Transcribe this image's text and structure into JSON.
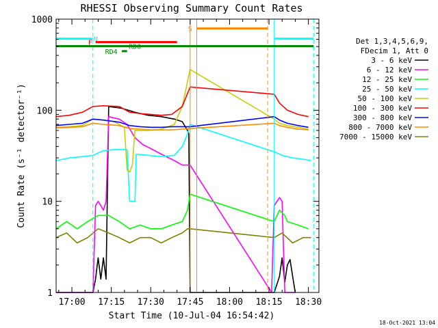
{
  "chart_data": {
    "type": "line",
    "title": "RHESSI Observing Summary Count Rates",
    "xlabel": "Start Time (10-Jul-04 16:54:42)",
    "ylabel": "Count Rate (s⁻¹ detector⁻¹)",
    "yscale": "log",
    "ylim": [
      1,
      1000
    ],
    "xlim_minutes_after_1654": [
      0,
      100
    ],
    "x_ticks": [
      {
        "label": "17:00",
        "min": 6
      },
      {
        "label": "17:15",
        "min": 21
      },
      {
        "label": "17:30",
        "min": 36
      },
      {
        "label": "17:45",
        "min": 51
      },
      {
        "label": "18:00",
        "min": 66
      },
      {
        "label": "18:15",
        "min": 81
      },
      {
        "label": "18:30",
        "min": 96
      }
    ],
    "y_ticks": [
      {
        "label": "1",
        "value": 1
      },
      {
        "label": "10",
        "value": 10
      },
      {
        "label": "100",
        "value": 100
      },
      {
        "label": "1000",
        "value": 1000
      }
    ],
    "legend": {
      "placement": "right",
      "header": [
        "Det 1,3,4,5,6,9,",
        "FDecim 1, Att 0"
      ]
    },
    "series": [
      {
        "name": "3 - 6 keV",
        "color": "#000000",
        "points": [
          [
            0,
            1
          ],
          [
            14,
            1
          ],
          [
            15,
            1.4
          ],
          [
            16,
            2.4
          ],
          [
            17,
            1.4
          ],
          [
            18,
            2.4
          ],
          [
            19,
            1.4
          ],
          [
            20,
            110
          ],
          [
            25,
            105
          ],
          [
            30,
            95
          ],
          [
            35,
            88
          ],
          [
            40,
            85
          ],
          [
            45,
            80
          ],
          [
            48,
            75
          ],
          [
            50,
            60
          ],
          [
            50.5,
            55
          ],
          [
            51,
            1
          ],
          [
            83,
            1
          ],
          [
            85,
            1.5
          ],
          [
            86,
            2.4
          ],
          [
            87,
            1.3
          ],
          [
            88,
            2
          ],
          [
            89,
            2.3
          ],
          [
            90,
            1.5
          ],
          [
            91,
            1
          ]
        ]
      },
      {
        "name": "6 - 12 keV",
        "color": "#ff00ff",
        "points": [
          [
            0,
            1
          ],
          [
            14,
            1
          ],
          [
            15,
            9
          ],
          [
            16,
            10
          ],
          [
            17,
            9
          ],
          [
            18,
            8
          ],
          [
            19,
            10
          ],
          [
            20,
            85
          ],
          [
            24,
            80
          ],
          [
            27,
            70
          ],
          [
            30,
            50
          ],
          [
            33,
            42
          ],
          [
            36,
            38
          ],
          [
            40,
            33
          ],
          [
            45,
            28
          ],
          [
            48,
            25
          ],
          [
            51,
            25
          ],
          [
            82,
            1
          ],
          [
            83,
            9
          ],
          [
            85,
            11
          ],
          [
            86,
            10
          ],
          [
            87,
            1
          ],
          [
            91,
            1
          ]
        ]
      },
      {
        "name": "12 - 25 keV",
        "color": "#00ff00",
        "points": [
          [
            0,
            5
          ],
          [
            4,
            6
          ],
          [
            8,
            5
          ],
          [
            12,
            6
          ],
          [
            16,
            7
          ],
          [
            20,
            7
          ],
          [
            24,
            6
          ],
          [
            28,
            5
          ],
          [
            32,
            5.5
          ],
          [
            36,
            5
          ],
          [
            40,
            5
          ],
          [
            44,
            5.5
          ],
          [
            48,
            6
          ],
          [
            50,
            8
          ],
          [
            51,
            12
          ],
          [
            83,
            6
          ],
          [
            85,
            8
          ],
          [
            87,
            7
          ],
          [
            88,
            6
          ],
          [
            92,
            5.5
          ],
          [
            96,
            5
          ]
        ]
      },
      {
        "name": "25 - 50 keV",
        "color": "#00ffff",
        "points": [
          [
            0,
            28
          ],
          [
            5,
            30
          ],
          [
            10,
            31
          ],
          [
            14,
            32
          ],
          [
            18,
            36
          ],
          [
            22,
            37
          ],
          [
            27,
            37
          ],
          [
            28,
            10
          ],
          [
            30,
            10
          ],
          [
            30.5,
            33
          ],
          [
            35,
            32
          ],
          [
            40,
            31
          ],
          [
            45,
            32
          ],
          [
            48,
            40
          ],
          [
            50,
            55
          ],
          [
            51,
            70
          ],
          [
            83,
            35
          ],
          [
            86,
            32
          ],
          [
            90,
            30
          ],
          [
            94,
            29
          ],
          [
            97,
            28
          ]
        ]
      },
      {
        "name": "50 - 100 keV",
        "color": "#cccc00",
        "points": [
          [
            0,
            65
          ],
          [
            5,
            66
          ],
          [
            10,
            68
          ],
          [
            14,
            80
          ],
          [
            18,
            78
          ],
          [
            22,
            75
          ],
          [
            26,
            65
          ],
          [
            27,
            22
          ],
          [
            28,
            21
          ],
          [
            29,
            25
          ],
          [
            30,
            60
          ],
          [
            35,
            60
          ],
          [
            40,
            62
          ],
          [
            45,
            70
          ],
          [
            48,
            110
          ],
          [
            51,
            280
          ],
          [
            83,
            80
          ],
          [
            85,
            72
          ],
          [
            88,
            68
          ],
          [
            92,
            65
          ],
          [
            96,
            62
          ]
        ]
      },
      {
        "name": "100 - 300 keV",
        "color": "#ff0000",
        "points": [
          [
            0,
            85
          ],
          [
            5,
            88
          ],
          [
            10,
            95
          ],
          [
            14,
            110
          ],
          [
            18,
            112
          ],
          [
            24,
            110
          ],
          [
            28,
            95
          ],
          [
            32,
            92
          ],
          [
            36,
            90
          ],
          [
            40,
            88
          ],
          [
            44,
            90
          ],
          [
            48,
            110
          ],
          [
            51,
            180
          ],
          [
            83,
            150
          ],
          [
            85,
            120
          ],
          [
            88,
            100
          ],
          [
            92,
            90
          ],
          [
            96,
            85
          ]
        ]
      },
      {
        "name": "300 - 800 keV",
        "color": "#0000ff",
        "points": [
          [
            0,
            68
          ],
          [
            5,
            70
          ],
          [
            10,
            72
          ],
          [
            14,
            80
          ],
          [
            18,
            78
          ],
          [
            24,
            74
          ],
          [
            28,
            68
          ],
          [
            32,
            66
          ],
          [
            36,
            65
          ],
          [
            40,
            65
          ],
          [
            44,
            66
          ],
          [
            48,
            66
          ],
          [
            51,
            66
          ],
          [
            83,
            85
          ],
          [
            85,
            78
          ],
          [
            88,
            72
          ],
          [
            92,
            68
          ],
          [
            96,
            65
          ]
        ]
      },
      {
        "name": "800 - 7000 keV",
        "color": "#ff8800",
        "points": [
          [
            0,
            64
          ],
          [
            5,
            65
          ],
          [
            10,
            66
          ],
          [
            14,
            72
          ],
          [
            18,
            70
          ],
          [
            24,
            68
          ],
          [
            28,
            63
          ],
          [
            32,
            62
          ],
          [
            36,
            61
          ],
          [
            40,
            61
          ],
          [
            44,
            61
          ],
          [
            48,
            62
          ],
          [
            51,
            63
          ],
          [
            83,
            72
          ],
          [
            85,
            68
          ],
          [
            88,
            65
          ],
          [
            92,
            62
          ],
          [
            96,
            61
          ]
        ]
      },
      {
        "name": "7000 - 15000 keV",
        "color": "#808000",
        "points": [
          [
            0,
            4
          ],
          [
            4,
            4.5
          ],
          [
            8,
            3.5
          ],
          [
            12,
            4
          ],
          [
            16,
            5
          ],
          [
            20,
            4.5
          ],
          [
            24,
            4
          ],
          [
            28,
            3.5
          ],
          [
            32,
            4
          ],
          [
            36,
            4
          ],
          [
            40,
            3.5
          ],
          [
            44,
            4
          ],
          [
            48,
            4.5
          ],
          [
            50,
            5
          ],
          [
            51,
            5
          ],
          [
            83,
            4
          ],
          [
            86,
            4.5
          ],
          [
            90,
            3.5
          ],
          [
            94,
            4
          ],
          [
            97,
            4
          ]
        ]
      }
    ],
    "annotations": {
      "flags": [
        {
          "label": "N",
          "color": "#00ffff",
          "x_min": [
            0,
            14
          ],
          "label_at": 15,
          "level": 610
        },
        {
          "label": "N",
          "color": "#00ffff",
          "x_min": [
            83,
            98
          ],
          "level": 610
        },
        {
          "label": "F",
          "color": "#ff0000",
          "x_min": [
            15,
            46
          ],
          "label_at": 13,
          "level": 560
        },
        {
          "label": "S",
          "color": "#ff8800",
          "x_min": [
            53.5,
            80.5
          ],
          "label_at": 51,
          "level": 790
        },
        {
          "label": "RD0",
          "color": "#008800",
          "x_min": [
            0,
            98
          ],
          "label_at": 30,
          "level": 505
        },
        {
          "label": "RD4",
          "color": "#008800",
          "x_min": [
            25,
            27
          ],
          "label_at": 21,
          "level": 445
        }
      ],
      "vlines": [
        {
          "x_min": 14,
          "color": "#00ffff",
          "style": "dashed"
        },
        {
          "x_min": 51,
          "color": "#ff8800",
          "style": "solid"
        },
        {
          "x_min": 53.5,
          "color": "#ff8800",
          "style": "solid"
        },
        {
          "x_min": 80.5,
          "color": "#ff8800",
          "style": "dashed"
        },
        {
          "x_min": 83,
          "color": "#00ffff",
          "style": "solid"
        },
        {
          "x_min": 98,
          "color": "#00ffff",
          "style": "dashed"
        }
      ]
    },
    "footer_date": "18-Oct-2021 13:04"
  }
}
